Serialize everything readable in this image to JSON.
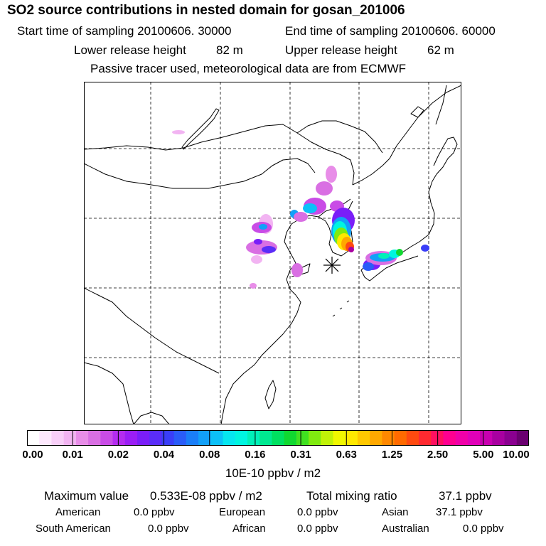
{
  "header": {
    "title": "SO2 source contributions in nested domain for gosan_201006",
    "start_label": "Start time of sampling 20100606. 30000",
    "end_label": "End time of sampling 20100606. 60000",
    "lower_label": "Lower release height",
    "lower_value": "82 m",
    "upper_label": "Upper release height",
    "upper_value": "62 m",
    "tracer_note": "Passive tracer used, meteorological data are from ECMWF"
  },
  "colorbar": {
    "ticks": [
      "0.00",
      "0.01",
      "0.02",
      "0.04",
      "0.08",
      "0.16",
      "0.31",
      "0.63",
      "1.25",
      "2.50",
      "5.00",
      "10.00"
    ],
    "unit": "10E-10 ppbv / m2",
    "colors": [
      "#ffffff",
      "#fde8fd",
      "#f8cff8",
      "#f2b4f2",
      "#e88de8",
      "#d96fe3",
      "#c94ce6",
      "#b42cf0",
      "#9a1ef5",
      "#7a1ef8",
      "#5a2df8",
      "#3a3ef8",
      "#2a5cf8",
      "#1a7ef8",
      "#12a0f8",
      "#0cc0f8",
      "#06e6f0",
      "#00f5e0",
      "#00f0b8",
      "#00e890",
      "#00e060",
      "#10d830",
      "#40e020",
      "#80ea10",
      "#c0f208",
      "#f0f800",
      "#ffe800",
      "#ffc800",
      "#ffa800",
      "#ff8800",
      "#ff6a00",
      "#ff4a10",
      "#ff2a30",
      "#ff1060",
      "#ff0090",
      "#f000a8",
      "#e000b8",
      "#c800b0",
      "#a800a0",
      "#8a0090",
      "#6a0070"
    ]
  },
  "stats": {
    "max_label": "Maximum value",
    "max_value": "0.533E-08 ppbv / m2",
    "total_label": "Total mixing ratio",
    "total_value": "37.1 ppbv"
  },
  "regions": [
    {
      "name": "American",
      "value": "0.0 ppbv"
    },
    {
      "name": "European",
      "value": "0.0 ppbv"
    },
    {
      "name": "Asian",
      "value": "37.1 ppbv"
    },
    {
      "name": "South American",
      "value": "0.0 ppbv"
    },
    {
      "name": "African",
      "value": "0.0 ppbv"
    },
    {
      "name": "Australian",
      "value": "0.0 ppbv"
    }
  ]
}
